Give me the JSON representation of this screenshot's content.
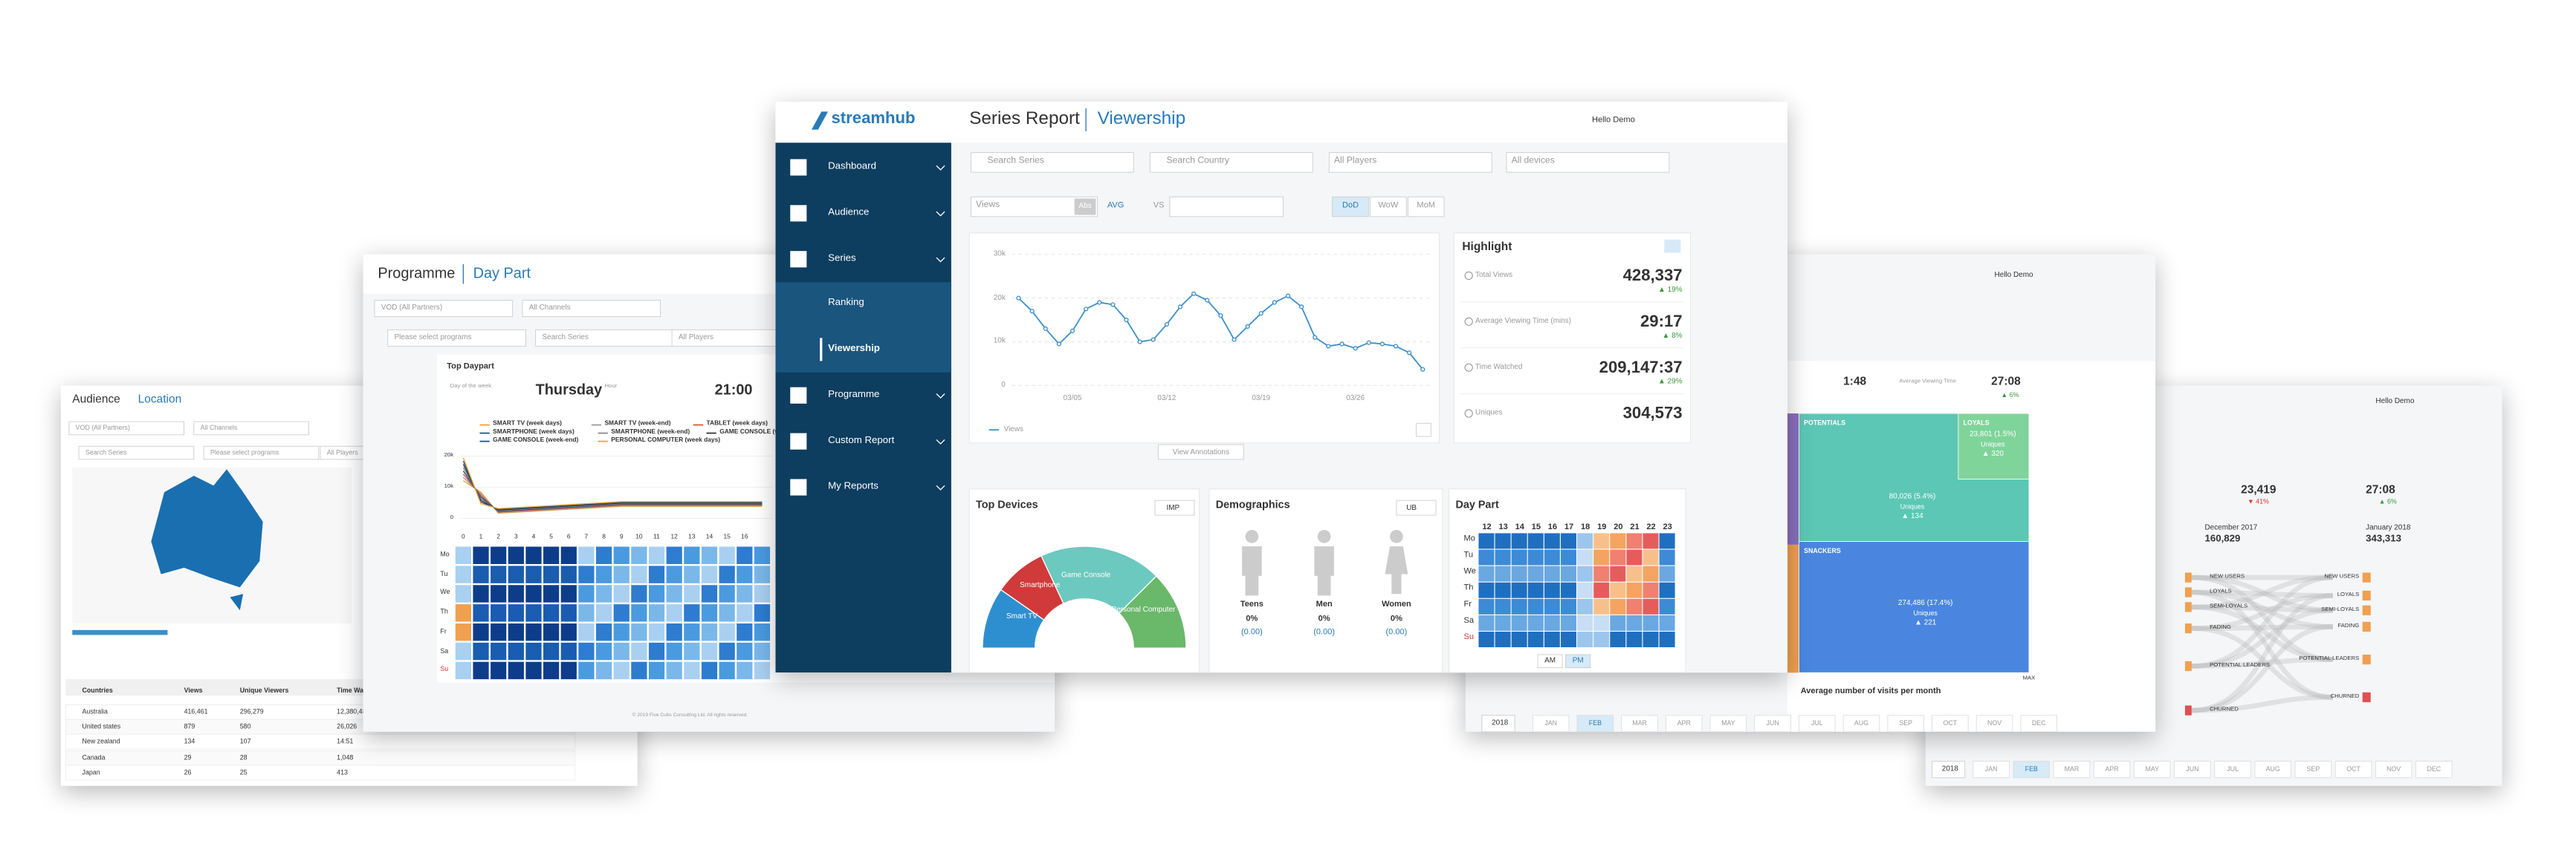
{
  "main": {
    "logo": "streamhub",
    "title": "Series Report",
    "subtitle": "Viewership",
    "user": "Hello Demo",
    "nav": [
      "Dashboard",
      "Audience",
      "Series",
      "Ranking",
      "Viewership",
      "Programme",
      "Custom Report",
      "My Reports"
    ],
    "filters": [
      "Search Series",
      "Search Country",
      "All Players",
      "All devices"
    ],
    "metric": "Views",
    "abs": "Abs",
    "avg": "AVG",
    "vs": "VS",
    "periods": [
      "DoD",
      "WoW",
      "MoM"
    ],
    "views_chart": {
      "type": "line",
      "categories": [
        null,
        null,
        null,
        null,
        "03/05",
        null,
        null,
        null,
        null,
        null,
        null,
        "03/12",
        null,
        null,
        null,
        null,
        null,
        null,
        "03/19",
        null,
        null,
        null,
        null,
        null,
        null,
        "03/26",
        null,
        null,
        null,
        null,
        null
      ],
      "series": [
        {
          "name": "Views",
          "color": "#3a8fc9",
          "values": [
            20000,
            17000,
            13000,
            9500,
            12500,
            17500,
            19000,
            18500,
            15000,
            10000,
            10500,
            14000,
            18000,
            21000,
            19500,
            16000,
            10500,
            13500,
            16500,
            19000,
            20500,
            18000,
            11000,
            9000,
            9500,
            8500,
            9800,
            9500,
            9000,
            7500,
            3700
          ]
        }
      ],
      "ylim": [
        0,
        30000
      ],
      "yticks": [
        0,
        {
          "value": 10000,
          "label": "10k"
        },
        {
          "value": 20000,
          "label": "20k"
        },
        {
          "value": 30000,
          "label": "30k"
        }
      ],
      "grid": true
    },
    "annotations": "View Annotations",
    "highlight": {
      "title": "Highlight",
      "items": [
        {
          "label": "Total Views",
          "value": "428,337",
          "change": "▲ 19%"
        },
        {
          "label": "Average Viewing Time (mins)",
          "value": "29:17",
          "change": "▲ 8%"
        },
        {
          "label": "Time Watched",
          "value": "209,147:37",
          "change": "▲ 29%"
        },
        {
          "label": "Uniques",
          "value": "304,573"
        }
      ]
    },
    "devices": {
      "title": "Top Devices",
      "toggle": "IMP",
      "segments": [
        "Smart TV",
        "Smartphone",
        "Game Console",
        "Personal Computer"
      ]
    },
    "demographics": {
      "title": "Demographics",
      "toggle": "UB",
      "groups": [
        {
          "label": "Teens",
          "pct": "0%",
          "avg": "(0.00)"
        },
        {
          "label": "Men",
          "pct": "0%",
          "avg": "(0.00)"
        },
        {
          "label": "Women",
          "pct": "0%",
          "avg": "(0.00)"
        }
      ]
    },
    "daypart": {
      "title": "Day Part",
      "hours": [
        "12",
        "13",
        "14",
        "15",
        "16",
        "17",
        "18",
        "19",
        "20",
        "21",
        "22",
        "23"
      ],
      "days": [
        "Mo",
        "Tu",
        "We",
        "Th",
        "Fr",
        "Sa",
        "Su"
      ],
      "am": "AM",
      "pm": "PM"
    }
  },
  "daypart_window": {
    "title": "Programme",
    "subtitle": "Day Part",
    "filters": [
      "VOD (All Partners)",
      "All Channels",
      "Please select programs",
      "Search Series",
      "All Players"
    ],
    "top": "Top Daypart",
    "day_label": "Day of the week",
    "day": "Thursday",
    "hour_label": "Hour",
    "hour": "21:00",
    "legend": [
      "SMART TV (week days)",
      "SMART TV (week-end)",
      "TABLET (week days)",
      "SMARTPHONE (week days)",
      "SMARTPHONE (week-end)",
      "GAME CONSOLE (week days)",
      "GAME CONSOLE (week-end)",
      "PERSONAL COMPUTER (week days)"
    ],
    "yticks": [
      "20k",
      "10k",
      "0"
    ],
    "hours": [
      "0",
      "1",
      "2",
      "3",
      "4",
      "5",
      "6",
      "7",
      "8",
      "9",
      "10",
      "11",
      "12",
      "13",
      "14",
      "15",
      "16"
    ],
    "days": [
      "Mo",
      "Tu",
      "We",
      "Th",
      "Fr",
      "Sa",
      "Su"
    ],
    "footer": "© 2019 Five Cubs Consulting Ltd. All rights reserved."
  },
  "audience_window": {
    "title": "Audience",
    "subtitle": "Location",
    "filters": [
      "VOD (All Partners)",
      "All Channels",
      "Search Series",
      "Please select programs",
      "All Players"
    ],
    "table": {
      "headers": [
        "Countries",
        "Views",
        "Unique Viewers",
        "Time Wa"
      ],
      "rows": [
        [
          "Australia",
          "416,461",
          "296,279",
          "12,380,48"
        ],
        [
          "United states",
          "879",
          "580",
          "26,026"
        ],
        [
          "New zealand",
          "134",
          "107",
          "14:51"
        ],
        [
          "Canada",
          "29",
          "28",
          "1,048"
        ],
        [
          "Japan",
          "26",
          "25",
          "413"
        ]
      ]
    }
  },
  "segments_window": {
    "user": "Hello Demo",
    "duration": "1:48",
    "avg_time_label": "Average Viewing Time",
    "avg_time": "27:08",
    "avg_change": "▲ 6%",
    "blocks": [
      {
        "name": "POTENTIALS"
      },
      {
        "name": "LOYALS",
        "value": "23,801 (1.5%)",
        "unit": "Uniques",
        "change": "▲ 320"
      },
      {
        "value": "80,026 (5.4%)",
        "unit": "Uniques",
        "change": "▲ 134"
      },
      {
        "name": "SNACKERS",
        "value": "274,486 (17.4%)",
        "unit": "Uniques",
        "change": "▲ 221"
      }
    ],
    "axis": "Average number of visits per month",
    "max": "MAX",
    "year": "2018",
    "months": [
      "JAN",
      "FEB",
      "MAR",
      "APR",
      "MAY",
      "JUN",
      "JUL",
      "AUG",
      "SEP",
      "OCT",
      "NOV",
      "DEC"
    ]
  },
  "flow_window": {
    "user": "Hello Demo",
    "users": "23,419",
    "users_change": "▼ 41%",
    "avg_time": "27:08",
    "avg_change": "▲ 6%",
    "from": "December 2017",
    "from_value": "160,829",
    "to": "January 2018",
    "to_value": "343,313",
    "left": [
      "NEW USERS",
      "LOYALS",
      "SEMI-LOYALS",
      "FADING",
      "POTENTIAL LEADERS",
      "CHURNED"
    ],
    "right": [
      "NEW USERS",
      "LOYALS",
      "SEMI-LOYALS",
      "FADING",
      "POTENTIAL LEADERS",
      "CHURNED"
    ],
    "year": "2018",
    "months": [
      "JAN",
      "FEB",
      "MAR",
      "APR",
      "MAY",
      "JUN",
      "JUL",
      "AUG",
      "SEP",
      "OCT",
      "NOV",
      "DEC"
    ]
  }
}
